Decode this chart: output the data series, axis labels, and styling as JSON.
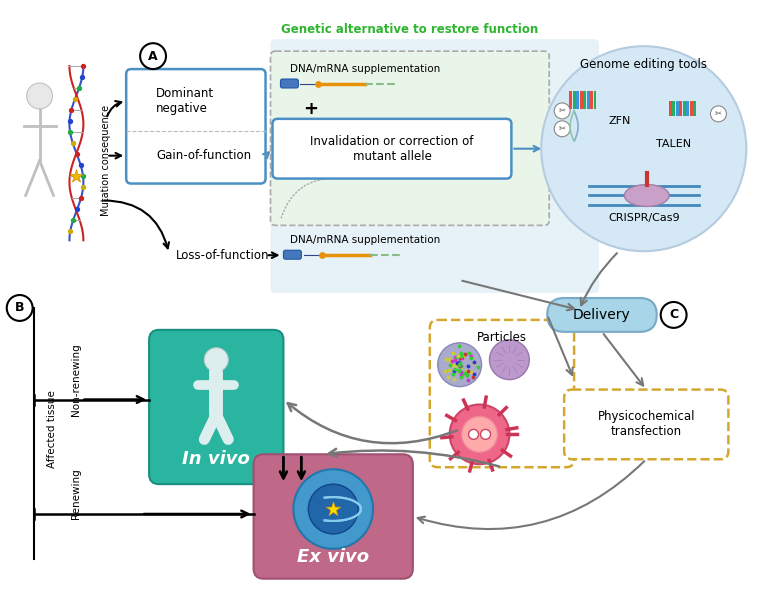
{
  "bg_color": "#ffffff",
  "genetic_alt_label": "Genetic alternative to restore function",
  "green_text_color": "#2db52d",
  "dominant_neg_text": "Dominant\nnegative",
  "gain_func_text": "Gain-of-function",
  "loss_func_text": "Loss-of-function",
  "dna_supp_text": "DNA/mRNA supplementation",
  "invalidation_text": "Invalidation or correction of\nmutant allele",
  "genome_editing_text": "Genome editing tools",
  "zfn_text": "ZFN",
  "talen_text": "TALEN",
  "crispr_text": "CRISPR/Cas9",
  "delivery_text": "Delivery",
  "particles_text": "Particles",
  "physicochemical_text": "Physicochemical\ntransfection",
  "in_vivo_text": "In vivo",
  "ex_vivo_text": "Ex vivo",
  "mutation_consequence_text": "Mutation consequence",
  "affected_tissue_text": "Affected tissue",
  "non_renewing_text": "Non-renewing",
  "renewing_text": "Renewing",
  "plus_text": "+",
  "box_blue": "#4a90c4",
  "teal_fill": "#2ab5a0",
  "teal_edge": "#1a9080",
  "purple_fill": "#c06888",
  "purple_edge": "#a05070",
  "delivery_fill": "#a8d5e8",
  "delivery_edge": "#78aac8",
  "particles_border": "#d4a830",
  "physio_border": "#d4a830",
  "arrow_gray": "#777777",
  "green_bg": "#e8f5e8",
  "green_edge": "#aaaaaa",
  "light_blue_bg": "#ddeef8"
}
